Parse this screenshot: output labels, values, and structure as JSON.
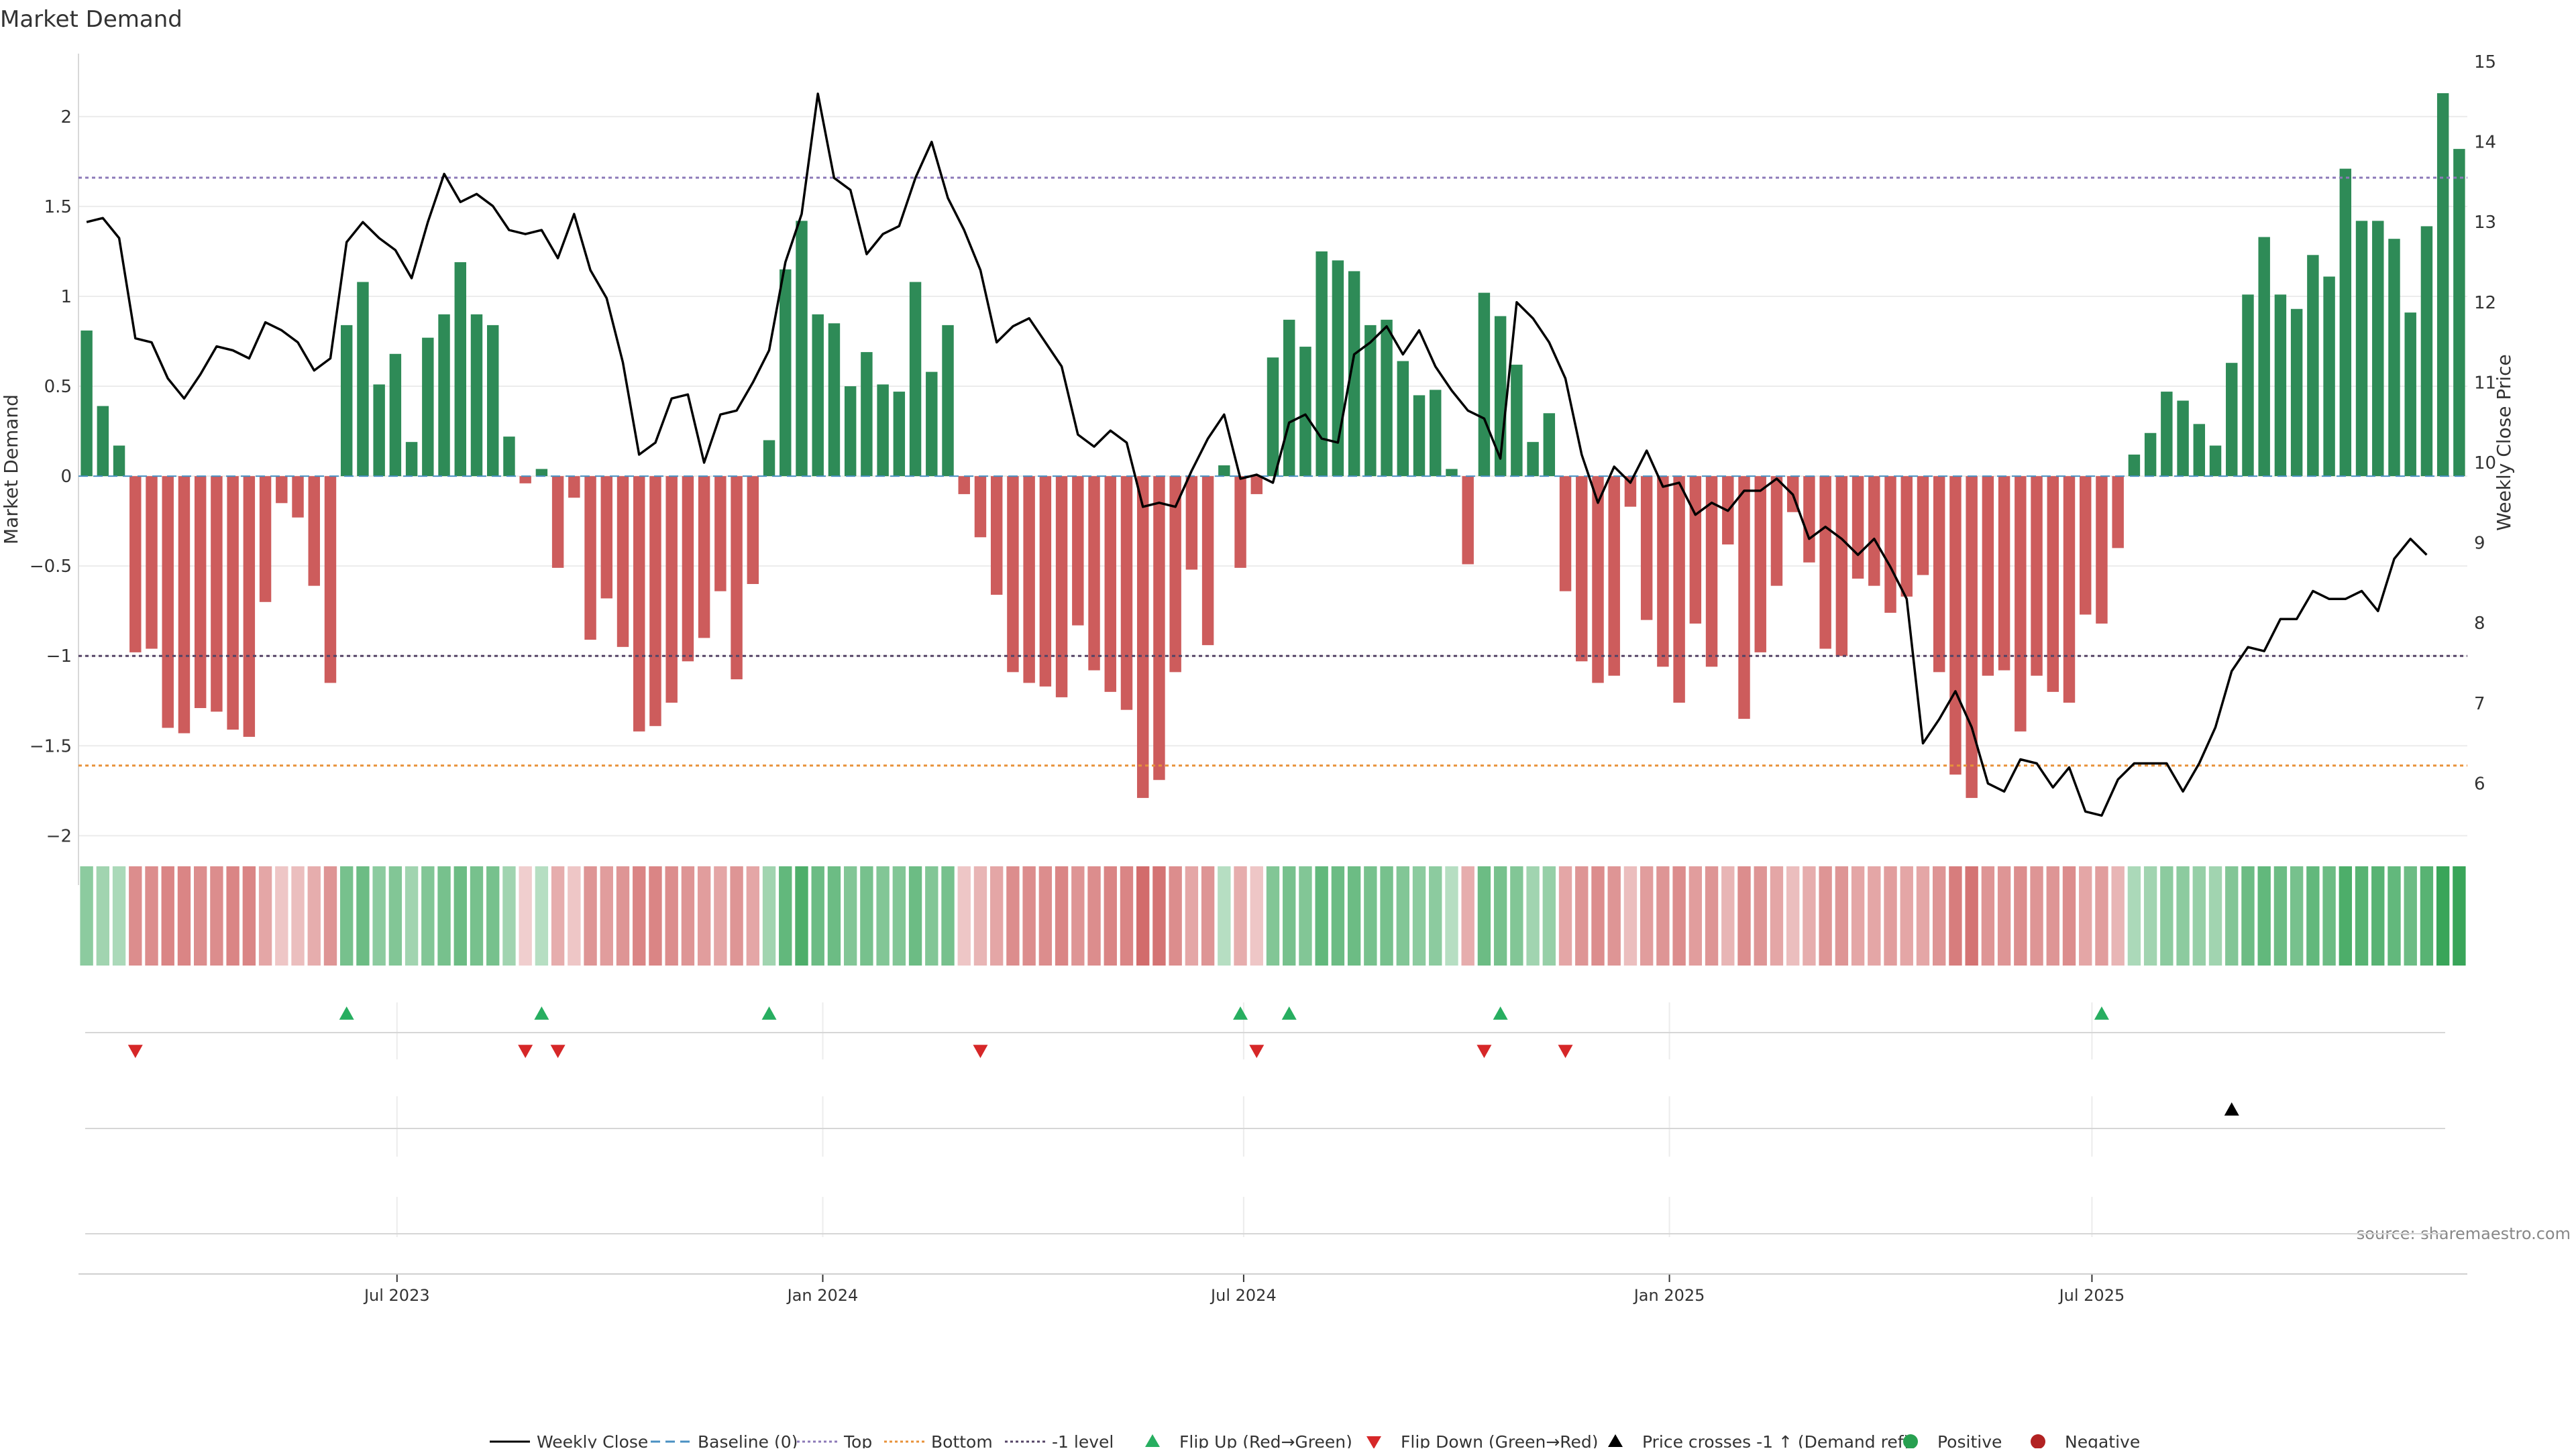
{
  "chart_data": {
    "type": "bar",
    "title": "Market Demand",
    "ylabel": "Market Demand",
    "y2label": "Weekly Close Price",
    "ylim": [
      -2.2,
      2.35
    ],
    "y2lim": [
      4.9,
      15.1
    ],
    "yticks": [
      -2,
      -1.5,
      -1,
      -0.5,
      0,
      0.5,
      1,
      1.5,
      2
    ],
    "ytick_labels": [
      "−2",
      "−1.5",
      "−1",
      "−0.5",
      "0",
      "0.5",
      "1",
      "1.5",
      "2"
    ],
    "y2ticks": [
      6,
      7,
      8,
      9,
      10,
      11,
      12,
      13,
      14,
      15
    ],
    "x_tick_labels": [
      "Jul 2023",
      "Jan 2024",
      "Jul 2024",
      "Jan 2025",
      "Jul 2025"
    ],
    "x_tick_index": [
      19.6,
      45.8,
      71.7,
      97.9,
      123.9
    ],
    "reference_lines": {
      "top": 1.66,
      "minus_one": -1.0,
      "bottom": -1.61
    },
    "colors": {
      "positive": "#2e8b57",
      "negative": "#cd5c5c",
      "close": "#000000",
      "top": "#8c7ab8",
      "bottom": "#e8923a",
      "level": "#554466",
      "flip_up": "#27ae60",
      "flip_down": "#d62728"
    },
    "demand": [
      0.81,
      0.39,
      0.17,
      -0.98,
      -0.96,
      -1.4,
      -1.43,
      -1.29,
      -1.31,
      -1.41,
      -1.45,
      -0.7,
      -0.15,
      -0.23,
      -0.61,
      -1.15,
      0.84,
      1.08,
      0.51,
      0.68,
      0.19,
      0.77,
      0.9,
      1.19,
      0.9,
      0.84,
      0.22,
      -0.04,
      0.04,
      -0.51,
      -0.12,
      -0.91,
      -0.68,
      -0.95,
      -1.42,
      -1.39,
      -1.26,
      -1.03,
      -0.9,
      -0.64,
      -1.13,
      -0.6,
      0.2,
      1.15,
      1.42,
      0.9,
      0.85,
      0.5,
      0.69,
      0.51,
      0.47,
      1.08,
      0.58,
      0.84,
      -0.1,
      -0.34,
      -0.66,
      -1.09,
      -1.15,
      -1.17,
      -1.23,
      -0.83,
      -1.08,
      -1.2,
      -1.3,
      -1.79,
      -1.69,
      -1.09,
      -0.52,
      -0.94,
      0.06,
      -0.51,
      -0.1,
      0.66,
      0.87,
      0.72,
      1.25,
      1.2,
      1.14,
      0.84,
      0.87,
      0.64,
      0.45,
      0.48,
      0.04,
      -0.49,
      1.02,
      0.89,
      0.62,
      0.19,
      0.35,
      -0.64,
      -1.03,
      -1.15,
      -1.11,
      -0.17,
      -0.8,
      -1.06,
      -1.26,
      -0.82,
      -1.06,
      -0.38,
      -1.35,
      -0.98,
      -0.61,
      -0.2,
      -0.48,
      -0.96,
      -1.0,
      -0.57,
      -0.61,
      -0.76,
      -0.67,
      -0.55,
      -1.09,
      -1.66,
      -1.79,
      -1.11,
      -1.08,
      -1.42,
      -1.11,
      -1.2,
      -1.26,
      -0.77,
      -0.82,
      -0.4,
      0.12,
      0.24,
      0.47,
      0.42,
      0.29,
      0.17,
      0.63,
      1.01,
      1.33,
      1.01,
      0.93,
      1.23,
      1.11,
      1.71,
      1.42,
      1.42,
      1.32,
      0.91,
      1.39,
      2.13,
      1.82
    ],
    "close": [
      13.0,
      13.05,
      12.8,
      11.55,
      11.5,
      11.05,
      10.8,
      11.1,
      11.45,
      11.4,
      11.3,
      11.75,
      11.65,
      11.5,
      11.15,
      11.3,
      12.75,
      13.0,
      12.8,
      12.65,
      12.3,
      13.0,
      13.6,
      13.25,
      13.35,
      13.2,
      12.9,
      12.85,
      12.9,
      12.55,
      13.1,
      12.4,
      12.05,
      11.25,
      10.1,
      10.25,
      10.8,
      10.85,
      10.0,
      10.6,
      10.65,
      11.0,
      11.4,
      12.5,
      13.1,
      14.6,
      13.55,
      13.4,
      12.6,
      12.85,
      12.95,
      13.55,
      14.0,
      13.3,
      12.9,
      12.4,
      11.5,
      11.7,
      11.8,
      11.5,
      11.2,
      10.35,
      10.2,
      10.4,
      10.25,
      9.45,
      9.5,
      9.45,
      9.9,
      10.3,
      10.6,
      9.8,
      9.85,
      9.75,
      10.5,
      10.6,
      10.3,
      10.25,
      11.35,
      11.5,
      11.7,
      11.35,
      11.65,
      11.2,
      10.9,
      10.65,
      10.55,
      10.05,
      12.0,
      11.8,
      11.5,
      11.05,
      10.1,
      9.5,
      9.95,
      9.75,
      10.15,
      9.7,
      9.75,
      9.35,
      9.5,
      9.4,
      9.65,
      9.65,
      9.8,
      9.6,
      9.05,
      9.2,
      9.05,
      8.85,
      9.05,
      8.7,
      8.3,
      6.5,
      6.8,
      7.15,
      6.7,
      6.0,
      5.9,
      6.3,
      6.25,
      5.95,
      6.2,
      5.65,
      5.6,
      6.05,
      6.25,
      6.25,
      6.25,
      5.9,
      6.25,
      6.7,
      7.4,
      7.7,
      7.65,
      8.05,
      8.05,
      8.4,
      8.3,
      8.3,
      8.4,
      8.15,
      8.8,
      9.05,
      8.85
    ],
    "heat": [
      0.4,
      0.3,
      0.25,
      0.55,
      0.55,
      0.6,
      0.6,
      0.55,
      0.55,
      0.6,
      0.6,
      0.4,
      0.2,
      0.25,
      0.35,
      0.5,
      0.5,
      0.55,
      0.4,
      0.45,
      0.3,
      0.45,
      0.5,
      0.55,
      0.5,
      0.5,
      0.3,
      0.15,
      0.2,
      0.35,
      0.2,
      0.5,
      0.45,
      0.5,
      0.6,
      0.6,
      0.55,
      0.5,
      0.45,
      0.4,
      0.5,
      0.4,
      0.3,
      0.6,
      0.7,
      0.55,
      0.55,
      0.45,
      0.5,
      0.45,
      0.45,
      0.55,
      0.45,
      0.5,
      0.2,
      0.3,
      0.4,
      0.55,
      0.55,
      0.55,
      0.6,
      0.5,
      0.55,
      0.6,
      0.6,
      0.75,
      0.7,
      0.55,
      0.4,
      0.5,
      0.2,
      0.35,
      0.2,
      0.45,
      0.5,
      0.45,
      0.6,
      0.55,
      0.55,
      0.5,
      0.5,
      0.45,
      0.4,
      0.4,
      0.2,
      0.35,
      0.55,
      0.5,
      0.45,
      0.3,
      0.35,
      0.4,
      0.5,
      0.55,
      0.5,
      0.25,
      0.45,
      0.5,
      0.55,
      0.45,
      0.5,
      0.3,
      0.55,
      0.5,
      0.4,
      0.25,
      0.35,
      0.5,
      0.5,
      0.4,
      0.4,
      0.45,
      0.4,
      0.4,
      0.5,
      0.65,
      0.7,
      0.5,
      0.5,
      0.55,
      0.5,
      0.5,
      0.55,
      0.4,
      0.45,
      0.3,
      0.25,
      0.3,
      0.4,
      0.4,
      0.35,
      0.3,
      0.45,
      0.55,
      0.6,
      0.55,
      0.5,
      0.6,
      0.55,
      0.7,
      0.65,
      0.65,
      0.6,
      0.55,
      0.65,
      0.85,
      0.8
    ],
    "flip_up_index": [
      16,
      28,
      42,
      71,
      74,
      87,
      124
    ],
    "flip_down_index": [
      3,
      27,
      29,
      55,
      72,
      86,
      91
    ],
    "cross_index": [
      132
    ],
    "source": "source: sharemaestro.com",
    "legend": [
      {
        "label": "Weekly Close",
        "kind": "line"
      },
      {
        "label": "Baseline (0)",
        "kind": "dash"
      },
      {
        "label": "Top",
        "kind": "dot"
      },
      {
        "label": "Bottom",
        "kind": "dot"
      },
      {
        "label": "-1 level",
        "kind": "dot"
      },
      {
        "label": "Flip Up (Red→Green)",
        "kind": "tri-up"
      },
      {
        "label": "Flip Down (Green→Red)",
        "kind": "tri-down"
      },
      {
        "label": "Price crosses -1 ↑ (Demand ref)",
        "kind": "tri-black"
      },
      {
        "label": "Positive",
        "kind": "dot-green"
      },
      {
        "label": "Negative",
        "kind": "dot-red"
      }
    ]
  }
}
